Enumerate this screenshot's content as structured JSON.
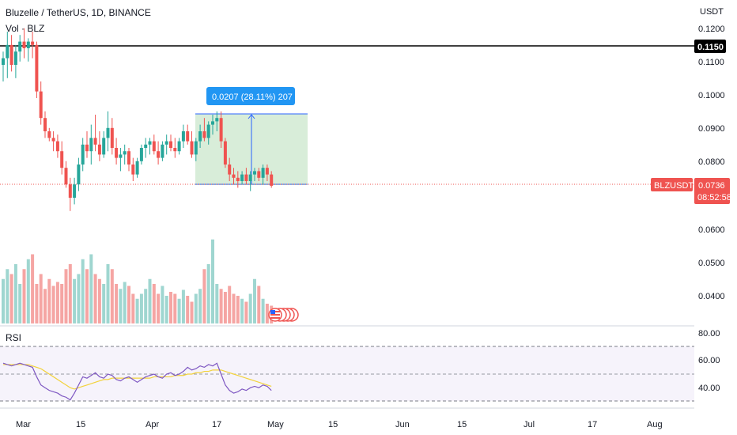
{
  "header": {
    "title": "Bluzelle / TetherUS, 1D, BINANCE",
    "volume_label": "Vol · BLZ",
    "currency": "USDT"
  },
  "rsi": {
    "label": "RSI",
    "levels": [
      "80.00",
      "60.00",
      "40.00"
    ]
  },
  "measure": {
    "text": "0.0207 (28.11%) 207"
  },
  "horizontal_line": {
    "value": 0.115,
    "label": "0.1150"
  },
  "last_price": {
    "symbol": "BLZUSDT",
    "price": "0.0736",
    "countdown": "08:52:58"
  },
  "colors": {
    "up": "#26a69a",
    "down": "#ef5350",
    "vol_up": "#9fd6d0",
    "vol_down": "#f5a5a3",
    "rsi_line": "#7e57c2",
    "rsi_ma": "#f2d23c",
    "measure_fill": "#c8e6c9",
    "measure_blue": "#2962ff"
  },
  "chart_data": {
    "type": "candlestick",
    "symbol": "BLZUSDT",
    "interval": "1D",
    "price_axis_ticks": [
      "0.1200",
      "0.1100",
      "0.1000",
      "0.0900",
      "0.0800",
      "0.0600",
      "0.0500",
      "0.0400"
    ],
    "x_axis_ticks": [
      "Mar",
      "15",
      "Apr",
      "17",
      "May",
      "15",
      "Jun",
      "15",
      "Jul",
      "17",
      "Aug"
    ],
    "ohlc": [
      [
        0.11,
        0.114,
        0.105,
        0.112
      ],
      [
        0.112,
        0.12,
        0.106,
        0.116
      ],
      [
        0.116,
        0.119,
        0.108,
        0.11
      ],
      [
        0.11,
        0.116,
        0.106,
        0.114
      ],
      [
        0.114,
        0.119,
        0.111,
        0.117
      ],
      [
        0.117,
        0.121,
        0.112,
        0.115
      ],
      [
        0.115,
        0.118,
        0.111,
        0.117
      ],
      [
        0.117,
        0.12,
        0.112,
        0.116
      ],
      [
        0.116,
        0.117,
        0.1,
        0.102
      ],
      [
        0.102,
        0.105,
        0.092,
        0.094
      ],
      [
        0.094,
        0.096,
        0.088,
        0.09
      ],
      [
        0.09,
        0.091,
        0.087,
        0.088
      ],
      [
        0.088,
        0.09,
        0.084,
        0.087
      ],
      [
        0.087,
        0.089,
        0.082,
        0.084
      ],
      [
        0.084,
        0.087,
        0.077,
        0.079
      ],
      [
        0.079,
        0.081,
        0.073,
        0.074
      ],
      [
        0.074,
        0.076,
        0.066,
        0.07
      ],
      [
        0.07,
        0.076,
        0.068,
        0.074
      ],
      [
        0.074,
        0.082,
        0.072,
        0.08
      ],
      [
        0.08,
        0.088,
        0.078,
        0.086
      ],
      [
        0.086,
        0.09,
        0.082,
        0.084
      ],
      [
        0.084,
        0.092,
        0.08,
        0.088
      ],
      [
        0.088,
        0.095,
        0.084,
        0.086
      ],
      [
        0.086,
        0.09,
        0.081,
        0.083
      ],
      [
        0.083,
        0.09,
        0.082,
        0.088
      ],
      [
        0.088,
        0.096,
        0.084,
        0.091
      ],
      [
        0.091,
        0.094,
        0.083,
        0.085
      ],
      [
        0.085,
        0.088,
        0.08,
        0.082
      ],
      [
        0.082,
        0.085,
        0.078,
        0.083
      ],
      [
        0.083,
        0.086,
        0.08,
        0.084
      ],
      [
        0.084,
        0.085,
        0.078,
        0.08
      ],
      [
        0.08,
        0.082,
        0.075,
        0.077
      ],
      [
        0.077,
        0.082,
        0.076,
        0.081
      ],
      [
        0.081,
        0.086,
        0.08,
        0.085
      ],
      [
        0.085,
        0.088,
        0.082,
        0.086
      ],
      [
        0.086,
        0.088,
        0.083,
        0.087
      ],
      [
        0.087,
        0.089,
        0.083,
        0.084
      ],
      [
        0.084,
        0.087,
        0.08,
        0.082
      ],
      [
        0.082,
        0.087,
        0.081,
        0.086
      ],
      [
        0.086,
        0.089,
        0.083,
        0.087
      ],
      [
        0.087,
        0.089,
        0.084,
        0.085
      ],
      [
        0.085,
        0.088,
        0.082,
        0.084
      ],
      [
        0.084,
        0.088,
        0.083,
        0.087
      ],
      [
        0.087,
        0.092,
        0.085,
        0.09
      ],
      [
        0.09,
        0.092,
        0.086,
        0.087
      ],
      [
        0.087,
        0.09,
        0.082,
        0.083
      ],
      [
        0.083,
        0.088,
        0.081,
        0.087
      ],
      [
        0.087,
        0.092,
        0.085,
        0.09
      ],
      [
        0.09,
        0.094,
        0.087,
        0.088
      ],
      [
        0.088,
        0.093,
        0.086,
        0.092
      ],
      [
        0.092,
        0.095,
        0.089,
        0.093
      ],
      [
        0.093,
        0.096,
        0.09,
        0.094
      ],
      [
        0.094,
        0.096,
        0.085,
        0.087
      ],
      [
        0.087,
        0.088,
        0.079,
        0.08
      ],
      [
        0.08,
        0.082,
        0.075,
        0.077
      ],
      [
        0.077,
        0.079,
        0.074,
        0.076
      ],
      [
        0.076,
        0.078,
        0.073,
        0.075
      ],
      [
        0.075,
        0.078,
        0.074,
        0.077
      ],
      [
        0.077,
        0.079,
        0.074,
        0.075
      ],
      [
        0.075,
        0.078,
        0.072,
        0.077
      ],
      [
        0.077,
        0.079,
        0.075,
        0.078
      ],
      [
        0.078,
        0.079,
        0.075,
        0.076
      ],
      [
        0.076,
        0.08,
        0.074,
        0.079
      ],
      [
        0.079,
        0.08,
        0.075,
        0.077
      ],
      [
        0.077,
        0.078,
        0.073,
        0.0736
      ]
    ],
    "volume_relative": [
      0.45,
      0.55,
      0.5,
      0.6,
      0.4,
      0.55,
      0.65,
      0.7,
      0.4,
      0.5,
      0.35,
      0.45,
      0.38,
      0.42,
      0.4,
      0.55,
      0.6,
      0.45,
      0.5,
      0.65,
      0.55,
      0.7,
      0.5,
      0.45,
      0.4,
      0.6,
      0.55,
      0.4,
      0.35,
      0.42,
      0.38,
      0.3,
      0.25,
      0.3,
      0.35,
      0.45,
      0.4,
      0.3,
      0.38,
      0.28,
      0.32,
      0.3,
      0.25,
      0.34,
      0.28,
      0.22,
      0.3,
      0.35,
      0.55,
      0.6,
      0.85,
      0.4,
      0.35,
      0.32,
      0.38,
      0.3,
      0.28,
      0.25,
      0.22,
      0.3,
      0.45,
      0.38,
      0.25,
      0.2,
      0.18
    ],
    "rsi": [
      58,
      57,
      56,
      57,
      58,
      57,
      56,
      55,
      48,
      42,
      40,
      38,
      37,
      36,
      34,
      33,
      31,
      36,
      42,
      48,
      47,
      49,
      51,
      48,
      47,
      50,
      49,
      46,
      45,
      47,
      48,
      46,
      44,
      46,
      48,
      49,
      50,
      48,
      47,
      50,
      51,
      49,
      50,
      52,
      55,
      53,
      54,
      56,
      55,
      57,
      56,
      58,
      50,
      42,
      38,
      36,
      37,
      39,
      38,
      40,
      41,
      40,
      42,
      41,
      38
    ],
    "rsi_ma": [
      57,
      57,
      57,
      57,
      57,
      57,
      57,
      56,
      55,
      54,
      52,
      50,
      48,
      46,
      44,
      42,
      40,
      39,
      40,
      41,
      42,
      43,
      44,
      45,
      46,
      46,
      47,
      47,
      47,
      47,
      47,
      47,
      47,
      47,
      47,
      47,
      48,
      48,
      48,
      48,
      48,
      49,
      49,
      49,
      50,
      50,
      51,
      51,
      52,
      52,
      53,
      53,
      53,
      52,
      51,
      50,
      49,
      48,
      47,
      46,
      45,
      44,
      43,
      42,
      41
    ]
  }
}
